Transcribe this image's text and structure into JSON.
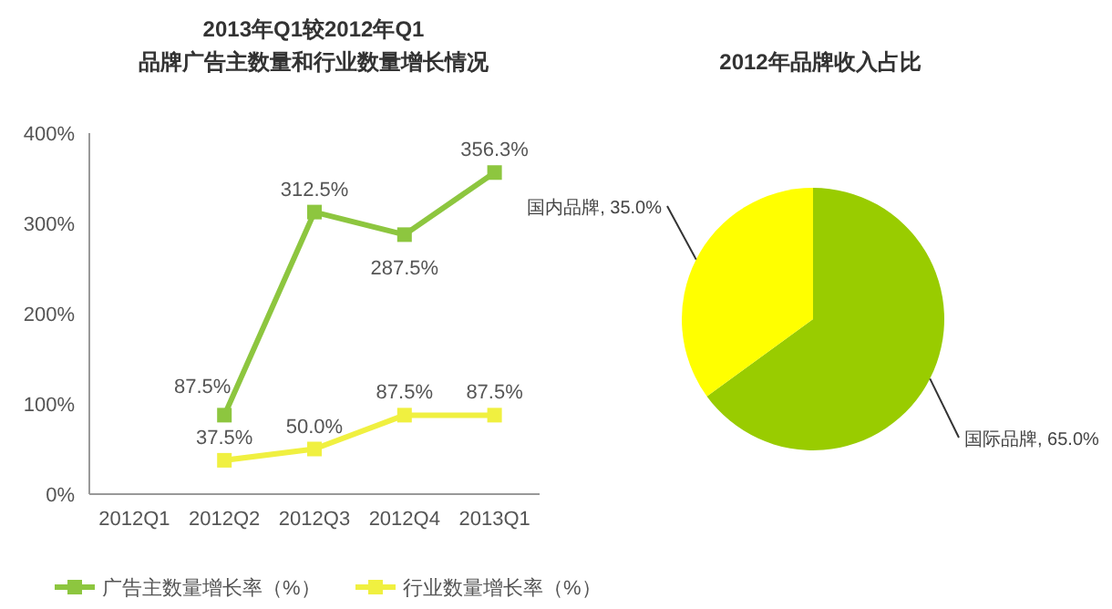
{
  "chart_data": [
    {
      "type": "line",
      "title": "2013年Q1较2012年Q1",
      "subtitle": "品牌广告主数量和行业数量增长情况",
      "categories": [
        "2012Q1",
        "2012Q2",
        "2012Q3",
        "2012Q4",
        "2013Q1"
      ],
      "series": [
        {
          "name": "广告主数量增长率（%）",
          "color": "#8dc63f",
          "values": [
            null,
            87.5,
            312.5,
            287.5,
            356.3
          ],
          "value_labels": [
            null,
            "87.5%",
            "312.5%",
            "287.5%",
            "356.3%"
          ]
        },
        {
          "name": "行业数量增长率（%）",
          "color": "#f0f040",
          "values": [
            null,
            37.5,
            50.0,
            87.5,
            87.5
          ],
          "value_labels": [
            null,
            "37.5%",
            "50.0%",
            "87.5%",
            "87.5%"
          ]
        }
      ],
      "ylim": [
        0,
        400
      ],
      "yticks": [
        {
          "value": 0,
          "label": "0%"
        },
        {
          "value": 100,
          "label": "100%"
        },
        {
          "value": 200,
          "label": "200%"
        },
        {
          "value": 300,
          "label": "300%"
        },
        {
          "value": 400,
          "label": "400%"
        }
      ],
      "legend": "bottom",
      "marker": "square",
      "grid": false
    },
    {
      "type": "pie",
      "title": "2012年品牌收入占比",
      "categories": [
        "国内品牌",
        "国际品牌"
      ],
      "values": [
        35.0,
        65.0
      ],
      "value_labels": [
        ", 35.0%",
        ", 65.0%"
      ],
      "colors": [
        "#ffff00",
        "#99cc00"
      ]
    }
  ]
}
